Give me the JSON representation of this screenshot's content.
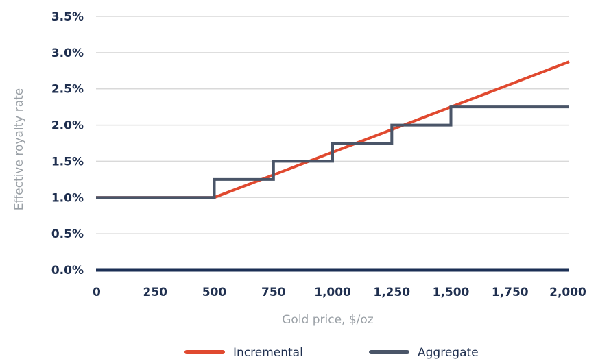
{
  "chart_data": {
    "type": "line",
    "title": "",
    "xlabel": "Gold price, $/oz",
    "ylabel": "Effective royalty rate",
    "xlim": [
      0,
      2000
    ],
    "ylim": [
      0,
      3.5
    ],
    "x_ticks": [
      0,
      250,
      500,
      750,
      1000,
      1250,
      1500,
      1750,
      2000
    ],
    "x_tick_labels": [
      "0",
      "250",
      "500",
      "750",
      "1,000",
      "1,250",
      "1,500",
      "1,750",
      "2,000"
    ],
    "y_ticks": [
      0,
      0.5,
      1.0,
      1.5,
      2.0,
      2.5,
      3.0,
      3.5
    ],
    "y_tick_labels": [
      "0.0%",
      "0.5%",
      "1.0%",
      "1.5%",
      "2.0%",
      "2.5%",
      "3.0%",
      "3.5%"
    ],
    "grid": true,
    "legend_position": "bottom",
    "series": [
      {
        "name": "Incremental",
        "color": "#e0492f",
        "x": [
          0,
          500,
          2000
        ],
        "y": [
          1.0,
          1.0,
          2.875
        ]
      },
      {
        "name": "Aggregate",
        "color": "#4a5568",
        "step": true,
        "x": [
          0,
          500,
          500,
          750,
          750,
          1000,
          1000,
          1250,
          1250,
          1500,
          1500,
          2000
        ],
        "y": [
          1.0,
          1.0,
          1.25,
          1.25,
          1.5,
          1.5,
          1.75,
          1.75,
          2.0,
          2.0,
          2.25,
          2.25
        ]
      }
    ],
    "colors": {
      "grid": "#d9d9d9",
      "zero_axis": "#1b2f55",
      "tick_text": "#1f2f4f",
      "axis_title": "#9aa0a6"
    }
  }
}
